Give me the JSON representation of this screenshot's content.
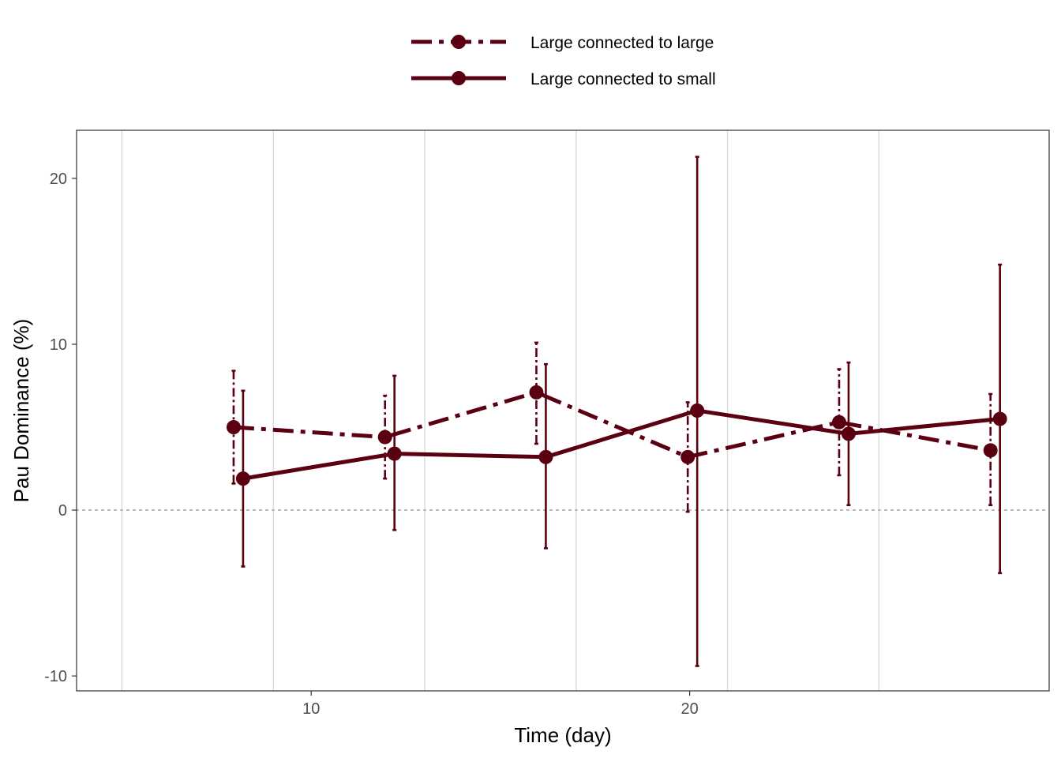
{
  "chart_data": {
    "type": "line",
    "title": "",
    "xlabel": "Time (day)",
    "ylabel": "Pau Dominance (%)",
    "xlim": [
      3.8,
      29.5
    ],
    "ylim": [
      -10.9,
      22.9
    ],
    "x_ticks": [
      10,
      20
    ],
    "x_tick_labels": [
      "10",
      "20"
    ],
    "y_ticks": [
      -10,
      0,
      10,
      20
    ],
    "y_tick_labels": [
      "-10",
      "0",
      "10",
      "20"
    ],
    "x_minor_gridlines": [
      5,
      9,
      13,
      17,
      21,
      25
    ],
    "reference_line_y": 0,
    "grid": true,
    "legend_position": "top",
    "color": "#5a0010",
    "reference_color": "#b3b3b3",
    "series": [
      {
        "name": "Large connected to large",
        "linestyle": "dashed",
        "x": [
          7.95,
          11.95,
          15.95,
          19.95,
          23.95,
          27.95
        ],
        "y": [
          5.0,
          4.4,
          7.1,
          3.2,
          5.3,
          3.6
        ],
        "err_low": [
          1.6,
          1.9,
          4.0,
          -0.1,
          2.1,
          0.3
        ],
        "err_high": [
          8.4,
          6.9,
          10.1,
          6.5,
          8.5,
          7.0
        ]
      },
      {
        "name": "Large connected to small",
        "linestyle": "solid",
        "x": [
          8.2,
          12.2,
          16.2,
          20.2,
          24.2,
          28.2
        ],
        "y": [
          1.9,
          3.4,
          3.2,
          6.0,
          4.6,
          5.5
        ],
        "err_low": [
          -3.4,
          -1.2,
          -2.3,
          -9.4,
          0.3,
          -3.8
        ],
        "err_high": [
          7.2,
          8.1,
          8.8,
          21.3,
          8.9,
          14.8
        ]
      }
    ]
  }
}
